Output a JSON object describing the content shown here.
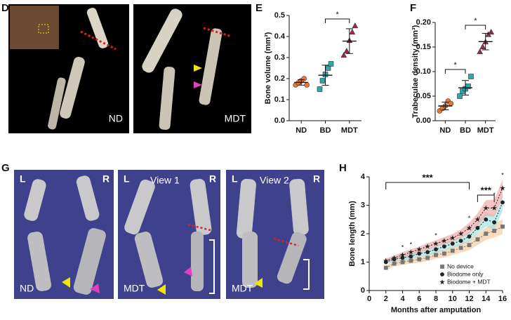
{
  "panel_letters": [
    "D",
    "E",
    "F",
    "G",
    "H"
  ],
  "image_labels": {
    "d_left": "ND",
    "d_right": "MDT",
    "g1_left": "L",
    "g1_right": "R",
    "g1_group": "ND",
    "g2_left": "L",
    "g2_right": "R",
    "g2_view": "View 1",
    "g2_group": "MDT",
    "g3_left": "L",
    "g3_right": "R",
    "g3_view": "View 2",
    "g3_group": "MDT"
  },
  "chart_data": [
    {
      "type": "strip",
      "ylabel": "Bone volume (mm³)",
      "categories": [
        "ND",
        "BD",
        "MDT"
      ],
      "values": [
        [
          0.17,
          0.18,
          0.19,
          0.2,
          0.17
        ],
        [
          0.15,
          0.19,
          0.22,
          0.25,
          0.27
        ],
        [
          0.31,
          0.33,
          0.38,
          0.42,
          0.45
        ]
      ],
      "colors": [
        "#e8782a",
        "#2fa7a8",
        "#a3245a"
      ],
      "markers": [
        "circle",
        "square",
        "triangle"
      ],
      "ylim": [
        0,
        0.5
      ],
      "yticks": [
        {
          "value": 0,
          "label": "0.0"
        },
        {
          "value": 0.1,
          "label": "0.1"
        },
        {
          "value": 0.2,
          "label": "0.2"
        },
        {
          "value": 0.3,
          "label": "0.3"
        },
        {
          "value": 0.4,
          "label": "0.4"
        },
        {
          "value": 0.5,
          "label": "0.5"
        }
      ],
      "significance": [
        {
          "between": [
            "BD",
            "MDT"
          ],
          "label": "*"
        }
      ]
    },
    {
      "type": "strip",
      "ylabel": "Trabeculae density (mm³)",
      "categories": [
        "ND",
        "BD",
        "MDT"
      ],
      "values": [
        [
          0.02,
          0.025,
          0.03,
          0.04,
          0.035
        ],
        [
          0.05,
          0.06,
          0.065,
          0.07,
          0.09
        ],
        [
          0.14,
          0.15,
          0.16,
          0.175,
          0.18
        ]
      ],
      "colors": [
        "#e8782a",
        "#2fa7a8",
        "#a3245a"
      ],
      "markers": [
        "circle",
        "square",
        "triangle"
      ],
      "ylim": [
        0,
        0.2
      ],
      "yticks": [
        {
          "value": 0,
          "label": "0.00"
        },
        {
          "value": 0.05,
          "label": "0.05"
        },
        {
          "value": 0.1,
          "label": "0.10"
        },
        {
          "value": 0.15,
          "label": "0.15"
        },
        {
          "value": 0.2,
          "label": "0.20"
        }
      ],
      "significance": [
        {
          "between": [
            "ND",
            "BD"
          ],
          "label": "*"
        },
        {
          "between": [
            "BD",
            "MDT"
          ],
          "label": "*"
        }
      ]
    },
    {
      "type": "line",
      "xlabel": "Months after amputation",
      "ylabel": "Bone length (mm)",
      "x": [
        2,
        3,
        4,
        5,
        6,
        7,
        8,
        9,
        10,
        11,
        12,
        13,
        14,
        15,
        16
      ],
      "xlim": [
        0,
        16
      ],
      "xticks": [
        0,
        2,
        4,
        6,
        8,
        10,
        12,
        14,
        16
      ],
      "ylim": [
        0,
        4
      ],
      "yticks": [
        0,
        1,
        2,
        3,
        4
      ],
      "legend": "lower right",
      "series": [
        {
          "name": "No device",
          "marker": "square",
          "color": "#777777",
          "band_color": "#f3c89c",
          "values": [
            0.8,
            0.95,
            1.0,
            1.05,
            1.1,
            1.15,
            1.25,
            1.3,
            1.4,
            1.5,
            1.6,
            1.8,
            2.0,
            2.1,
            2.25
          ],
          "errors": [
            0.08,
            0.1,
            0.1,
            0.1,
            0.12,
            0.12,
            0.13,
            0.14,
            0.15,
            0.16,
            0.18,
            0.2,
            0.22,
            0.24,
            0.26
          ]
        },
        {
          "name": "Biodome only",
          "marker": "circle",
          "color": "#222222",
          "band_color": "#9fe2e2",
          "values": [
            1.0,
            1.1,
            1.15,
            1.2,
            1.3,
            1.35,
            1.45,
            1.55,
            1.65,
            1.75,
            1.9,
            2.2,
            2.5,
            2.4,
            3.1
          ],
          "errors": [
            0.08,
            0.08,
            0.1,
            0.1,
            0.1,
            0.12,
            0.12,
            0.13,
            0.14,
            0.15,
            0.16,
            0.2,
            0.25,
            0.25,
            0.3
          ]
        },
        {
          "name": "Biodome + MDT",
          "marker": "star",
          "color": "#222222",
          "band_color": "#f2a4a4",
          "values": [
            1.05,
            1.15,
            1.25,
            1.35,
            1.45,
            1.55,
            1.65,
            1.75,
            1.85,
            2.0,
            2.2,
            2.5,
            2.9,
            2.9,
            3.6
          ],
          "errors": [
            0.08,
            0.08,
            0.1,
            0.1,
            0.1,
            0.12,
            0.12,
            0.13,
            0.14,
            0.15,
            0.18,
            0.22,
            0.28,
            0.3,
            0.3
          ]
        }
      ],
      "brackets": [
        {
          "x": [
            2,
            12
          ],
          "label": "***"
        },
        {
          "x": [
            13,
            15
          ],
          "label": "***"
        }
      ],
      "annotations": [
        {
          "x": 4,
          "label": "*"
        },
        {
          "x": 5,
          "label": "*"
        },
        {
          "x": 8,
          "label": "*"
        },
        {
          "x": 12,
          "label": "*"
        },
        {
          "x": 15,
          "label": "*"
        },
        {
          "x": 16,
          "label": "*"
        }
      ]
    }
  ]
}
